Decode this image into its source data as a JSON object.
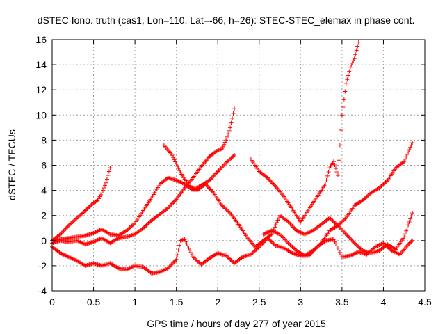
{
  "chart_data": {
    "type": "scatter",
    "title": "dSTEC Iono. truth (cas1, Lon=110, Lat=-66, h=26): STEC-STEC_elemax in phase cont.",
    "xlabel": "GPS time / hours of day 277 of year 2015",
    "ylabel": "dSTEC  / TECUs",
    "xlim": [
      0,
      4.5
    ],
    "ylim": [
      -4,
      16
    ],
    "xticks": [
      "0",
      "0.5",
      "1",
      "1.5",
      "2",
      "2.5",
      "3",
      "3.5",
      "4",
      "4.5"
    ],
    "yticks": [
      "-4",
      "-2",
      "0",
      "2",
      "4",
      "6",
      "8",
      "10",
      "12",
      "14",
      "16"
    ],
    "xtick_values": [
      0,
      0.5,
      1,
      1.5,
      2,
      2.5,
      3,
      3.5,
      4,
      4.5
    ],
    "ytick_values": [
      -4,
      -2,
      0,
      2,
      4,
      6,
      8,
      10,
      12,
      14,
      16
    ],
    "grid": true,
    "marker": "plus",
    "color": "#ff0000",
    "series": [
      {
        "x": [
          0.0,
          0.1,
          0.2,
          0.3,
          0.4,
          0.5,
          0.55,
          0.6,
          0.65,
          0.7
        ],
        "y": [
          0.0,
          0.5,
          1.2,
          1.8,
          2.4,
          3.0,
          3.2,
          3.8,
          4.6,
          5.8
        ]
      },
      {
        "x": [
          0.0,
          0.1,
          0.2,
          0.3,
          0.4,
          0.5,
          0.6,
          0.7,
          0.8,
          0.9,
          1.0,
          1.1,
          1.2,
          1.3,
          1.4,
          1.5,
          1.6,
          1.7,
          1.8,
          1.9,
          2.0,
          2.1,
          2.2
        ],
        "y": [
          0.0,
          0.1,
          0.2,
          0.3,
          0.4,
          0.6,
          0.9,
          0.5,
          0.4,
          0.8,
          1.4,
          2.4,
          3.4,
          4.5,
          5.0,
          4.8,
          4.5,
          4.0,
          4.4,
          4.8,
          5.5,
          6.2,
          6.8
        ]
      },
      {
        "x": [
          0.0,
          0.1,
          0.2,
          0.3,
          0.4,
          0.5,
          0.6,
          0.7,
          0.8,
          0.9,
          1.0,
          1.1,
          1.2,
          1.3,
          1.4,
          1.5,
          1.6,
          1.7,
          1.8,
          1.9,
          2.0,
          2.05,
          2.1,
          2.15,
          2.2
        ],
        "y": [
          -0.2,
          0.0,
          -0.1,
          0.0,
          -0.3,
          -0.1,
          0.2,
          -0.2,
          0.2,
          0.3,
          0.5,
          1.0,
          1.6,
          2.1,
          2.6,
          3.3,
          4.2,
          5.0,
          5.9,
          6.7,
          7.2,
          7.3,
          8.0,
          9.0,
          10.5
        ]
      },
      {
        "x": [
          0.0,
          0.1,
          0.2,
          0.3,
          0.4,
          0.5,
          0.6,
          0.7,
          0.8,
          0.9,
          1.0,
          1.1,
          1.2,
          1.3,
          1.4,
          1.5,
          1.55,
          1.6,
          1.7,
          1.8,
          1.9,
          2.0,
          2.1,
          2.2,
          2.3,
          2.4,
          2.5,
          2.6,
          2.7,
          2.8,
          2.9,
          3.0,
          3.1,
          3.2,
          3.3,
          3.4,
          3.5,
          3.6,
          3.7,
          3.8,
          3.9,
          4.0,
          4.1,
          4.2,
          4.3,
          4.35
        ],
        "y": [
          -0.5,
          -1.0,
          -1.3,
          -1.6,
          -2.0,
          -1.8,
          -2.0,
          -1.8,
          -2.2,
          -2.3,
          -2.0,
          -2.1,
          -2.6,
          -2.5,
          -2.2,
          -1.5,
          0.0,
          0.1,
          -1.3,
          -1.9,
          -1.4,
          -1.0,
          -1.2,
          -1.8,
          -1.3,
          -1.1,
          -0.5,
          0.2,
          -0.4,
          -0.6,
          -1.0,
          -1.2,
          -1.2,
          -0.5,
          0.0,
          0.1,
          -1.3,
          -1.2,
          -0.9,
          -1.1,
          -0.5,
          -0.2,
          -0.8,
          -1.1,
          -0.3,
          0.0
        ]
      },
      {
        "x": [
          1.35,
          1.45,
          1.55,
          1.65,
          1.75,
          1.85,
          1.95,
          2.05,
          2.15,
          2.25,
          2.35,
          2.45,
          2.55,
          2.65,
          2.75,
          2.85,
          2.95,
          3.05,
          3.15,
          3.25,
          3.35,
          3.45,
          3.55,
          3.65,
          3.75,
          3.85,
          3.95,
          4.05,
          4.15,
          4.25,
          4.35
        ],
        "y": [
          7.6,
          6.8,
          5.4,
          4.4,
          4.0,
          4.5,
          3.8,
          2.8,
          2.2,
          1.3,
          0.3,
          -0.5,
          0.0,
          0.5,
          2.0,
          1.5,
          0.8,
          0.5,
          0.8,
          1.3,
          1.8,
          1.2,
          0.5,
          -0.2,
          -0.8,
          -1.0,
          -0.8,
          -0.3,
          -0.7,
          0.3,
          2.2
        ]
      },
      {
        "x": [
          2.4,
          2.5,
          2.6,
          2.7,
          2.8,
          2.9,
          3.0,
          3.1,
          3.2,
          3.3,
          3.35,
          3.4,
          3.45,
          3.5,
          3.55,
          3.6,
          3.65,
          3.7
        ],
        "y": [
          6.5,
          5.5,
          5.0,
          4.3,
          3.5,
          2.5,
          1.5,
          2.5,
          3.5,
          4.5,
          5.8,
          6.3,
          5.2,
          10.0,
          12.5,
          13.8,
          14.5,
          15.8
        ]
      },
      {
        "x": [
          2.55,
          2.65,
          2.75,
          2.85,
          2.95,
          3.05,
          3.15,
          3.25,
          3.35,
          3.45,
          3.55,
          3.65,
          3.75,
          3.85,
          3.95,
          4.05,
          4.15,
          4.25,
          4.35
        ],
        "y": [
          0.5,
          0.8,
          0.5,
          -0.2,
          -0.8,
          -1.2,
          -0.8,
          -0.2,
          0.8,
          1.2,
          1.8,
          2.8,
          3.2,
          3.8,
          4.2,
          4.8,
          5.8,
          6.3,
          7.8
        ]
      }
    ]
  }
}
